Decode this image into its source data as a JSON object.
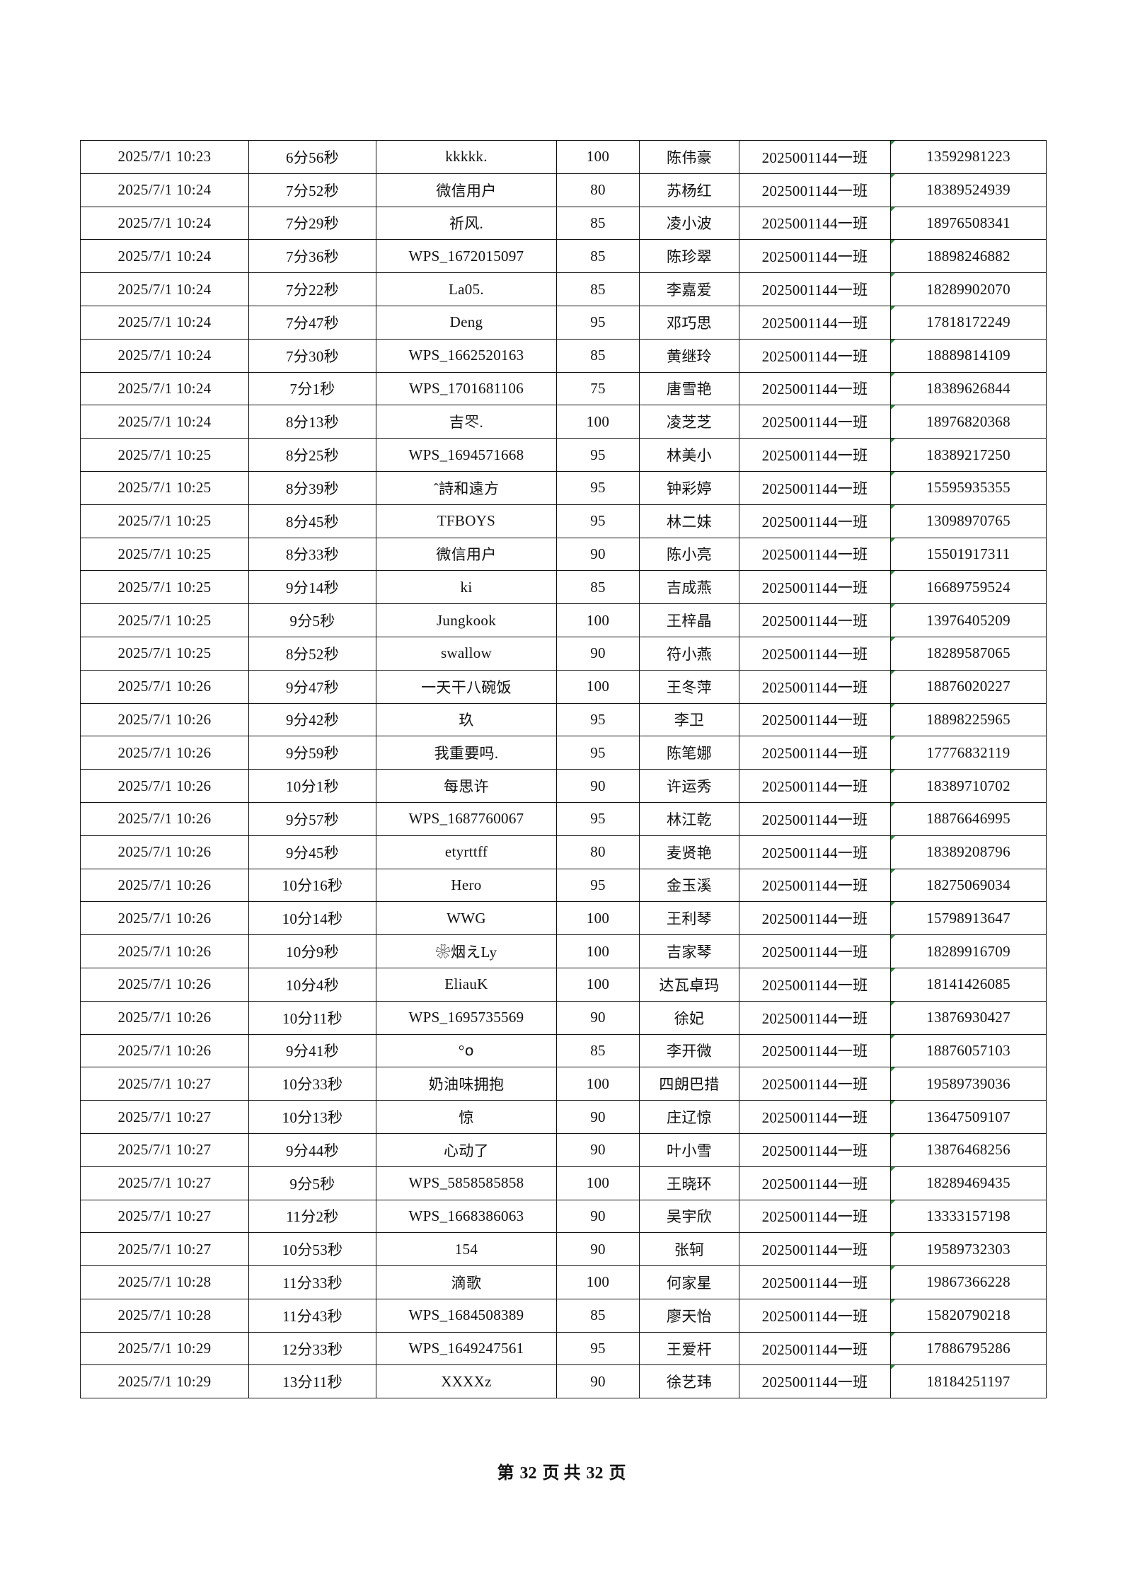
{
  "rows": [
    [
      "2025/7/1 10:23",
      "6分56秒",
      "kkkkk.",
      "100",
      "陈伟豪",
      "2025001144一班",
      "13592981223"
    ],
    [
      "2025/7/1 10:24",
      "7分52秒",
      "微信用户",
      "80",
      "苏杨红",
      "2025001144一班",
      "18389524939"
    ],
    [
      "2025/7/1 10:24",
      "7分29秒",
      "祈风.",
      "85",
      "凌小波",
      "2025001144一班",
      "18976508341"
    ],
    [
      "2025/7/1 10:24",
      "7分36秒",
      "WPS_1672015097",
      "85",
      "陈珍翠",
      "2025001144一班",
      "18898246882"
    ],
    [
      "2025/7/1 10:24",
      "7分22秒",
      "La05.",
      "85",
      "李嘉爱",
      "2025001144一班",
      "18289902070"
    ],
    [
      "2025/7/1 10:24",
      "7分47秒",
      "Deng",
      "95",
      "邓巧思",
      "2025001144一班",
      "17818172249"
    ],
    [
      "2025/7/1 10:24",
      "7分30秒",
      "WPS_1662520163",
      "85",
      "黄继玲",
      "2025001144一班",
      "18889814109"
    ],
    [
      "2025/7/1 10:24",
      "7分1秒",
      "WPS_1701681106",
      "75",
      "唐雪艳",
      "2025001144一班",
      "18389626844"
    ],
    [
      "2025/7/1 10:24",
      "8分13秒",
      "吉罖.",
      "100",
      "凌芝芝",
      "2025001144一班",
      "18976820368"
    ],
    [
      "2025/7/1 10:25",
      "8分25秒",
      "WPS_1694571668",
      "95",
      "林美小",
      "2025001144一班",
      "18389217250"
    ],
    [
      "2025/7/1 10:25",
      "8分39秒",
      "ˆ詩和遠方",
      "95",
      "钟彩婷",
      "2025001144一班",
      "15595935355"
    ],
    [
      "2025/7/1 10:25",
      "8分45秒",
      "TFBOYS",
      "95",
      "林二妹",
      "2025001144一班",
      "13098970765"
    ],
    [
      "2025/7/1 10:25",
      "8分33秒",
      "微信用户",
      "90",
      "陈小亮",
      "2025001144一班",
      "15501917311"
    ],
    [
      "2025/7/1 10:25",
      "9分14秒",
      "ki",
      "85",
      "吉成燕",
      "2025001144一班",
      "16689759524"
    ],
    [
      "2025/7/1 10:25",
      "9分5秒",
      "Jungkook",
      "100",
      "王梓晶",
      "2025001144一班",
      "13976405209"
    ],
    [
      "2025/7/1 10:25",
      "8分52秒",
      "swallow",
      "90",
      "符小燕",
      "2025001144一班",
      "18289587065"
    ],
    [
      "2025/7/1 10:26",
      "9分47秒",
      "一天干八碗饭",
      "100",
      "王冬萍",
      "2025001144一班",
      "18876020227"
    ],
    [
      "2025/7/1 10:26",
      "9分42秒",
      "玖",
      "95",
      "李卫",
      "2025001144一班",
      "18898225965"
    ],
    [
      "2025/7/1 10:26",
      "9分59秒",
      "我重要吗.",
      "95",
      "陈笔娜",
      "2025001144一班",
      "17776832119"
    ],
    [
      "2025/7/1 10:26",
      "10分1秒",
      "每思许",
      "90",
      "许运秀",
      "2025001144一班",
      "18389710702"
    ],
    [
      "2025/7/1 10:26",
      "9分57秒",
      "WPS_1687760067",
      "95",
      "林江乾",
      "2025001144一班",
      "18876646995"
    ],
    [
      "2025/7/1 10:26",
      "9分45秒",
      "etyrttff",
      "80",
      "麦贤艳",
      "2025001144一班",
      "18389208796"
    ],
    [
      "2025/7/1 10:26",
      "10分16秒",
      "Hero",
      "95",
      "金玉溪",
      "2025001144一班",
      "18275069034"
    ],
    [
      "2025/7/1 10:26",
      "10分14秒",
      "WWG",
      "100",
      "王利琴",
      "2025001144一班",
      "15798913647"
    ],
    [
      "2025/7/1 10:26",
      "10分9秒",
      "❀烟えLy",
      "100",
      "吉家琴",
      "2025001144一班",
      "18289916709"
    ],
    [
      "2025/7/1 10:26",
      "10分4秒",
      "EliauK",
      "100",
      "达瓦卓玛",
      "2025001144一班",
      "18141426085"
    ],
    [
      "2025/7/1 10:26",
      "10分11秒",
      "WPS_1695735569",
      "90",
      "徐妃",
      "2025001144一班",
      "13876930427"
    ],
    [
      "2025/7/1 10:26",
      "9分41秒",
      "°໐",
      "85",
      "李开微",
      "2025001144一班",
      "18876057103"
    ],
    [
      "2025/7/1 10:27",
      "10分33秒",
      "奶油味拥抱",
      "100",
      "四朗巴措",
      "2025001144一班",
      "19589739036"
    ],
    [
      "2025/7/1 10:27",
      "10分13秒",
      "惊",
      "90",
      "庄辽惊",
      "2025001144一班",
      "13647509107"
    ],
    [
      "2025/7/1 10:27",
      "9分44秒",
      "心动了",
      "90",
      "叶小雪",
      "2025001144一班",
      "13876468256"
    ],
    [
      "2025/7/1 10:27",
      "9分5秒",
      "WPS_5858585858",
      "100",
      "王晓环",
      "2025001144一班",
      "18289469435"
    ],
    [
      "2025/7/1 10:27",
      "11分2秒",
      "WPS_1668386063",
      "90",
      "吴宇欣",
      "2025001144一班",
      "13333157198"
    ],
    [
      "2025/7/1 10:27",
      "10分53秒",
      "154",
      "90",
      "张轲",
      "2025001144一班",
      "19589732303"
    ],
    [
      "2025/7/1 10:28",
      "11分33秒",
      "滴歌",
      "100",
      "何家星",
      "2025001144一班",
      "19867366228"
    ],
    [
      "2025/7/1 10:28",
      "11分43秒",
      "WPS_1684508389",
      "85",
      "廖天怡",
      "2025001144一班",
      "15820790218"
    ],
    [
      "2025/7/1 10:29",
      "12分33秒",
      "WPS_1649247561",
      "95",
      "王爱杆",
      "2025001144一班",
      "17886795286"
    ],
    [
      "2025/7/1 10:29",
      "13分11秒",
      "XXXXz",
      "90",
      "徐艺玮",
      "2025001144一班",
      "18184251197"
    ]
  ],
  "footer": {
    "prefix": "第",
    "page": "32",
    "middle": "页 共",
    "total": "32",
    "suffix": "页"
  },
  "colors": {
    "border": "#111111",
    "text_marker": "#2e8b3a"
  }
}
